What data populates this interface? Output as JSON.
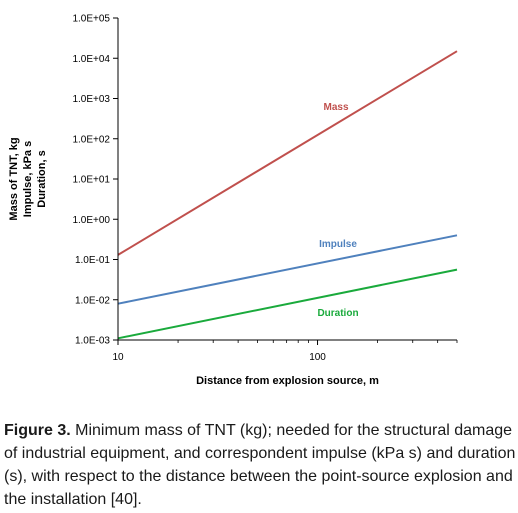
{
  "chart_data": {
    "type": "line",
    "x_scale": "log",
    "y_scale": "log",
    "xlim": [
      10,
      500
    ],
    "ylim": [
      0.001,
      100000
    ],
    "x_ticks": [
      {
        "value": 10,
        "label": "10"
      },
      {
        "value": 100,
        "label": "100"
      }
    ],
    "y_ticks": [
      {
        "value": 0.001,
        "label": "1.0E-03"
      },
      {
        "value": 0.01,
        "label": "1.0E-02"
      },
      {
        "value": 0.1,
        "label": "1.0E-01"
      },
      {
        "value": 1,
        "label": "1.0E+00"
      },
      {
        "value": 10,
        "label": "1.0E+01"
      },
      {
        "value": 100,
        "label": "1.0E+02"
      },
      {
        "value": 1000,
        "label": "1.0E+03"
      },
      {
        "value": 10000,
        "label": "1.0E+04"
      },
      {
        "value": 100000,
        "label": "1.0E+05"
      }
    ],
    "xlabel": "Distance from explosion source, m",
    "ylabel_lines": [
      "Mass of TNT, kg",
      "Impulse, kPa s",
      "Duration, s"
    ],
    "grid": false,
    "series": [
      {
        "name": "Mass",
        "color": "#c0504d",
        "x": [
          10,
          500
        ],
        "y": [
          0.13,
          15000
        ]
      },
      {
        "name": "Impulse",
        "color": "#4f81bd",
        "x": [
          10,
          500
        ],
        "y": [
          0.008,
          0.4
        ]
      },
      {
        "name": "Duration",
        "color": "#1aaa3c",
        "x": [
          10,
          500
        ],
        "y": [
          0.0011,
          0.056
        ]
      }
    ]
  },
  "caption": {
    "label": "Figure 3.",
    "text": " Minimum mass of TNT (kg); needed for the structural damage of industrial equipment, and correspondent impulse (kPa s) and duration (s), with respect to the distance between the point-source explosion and the installation [40]."
  }
}
